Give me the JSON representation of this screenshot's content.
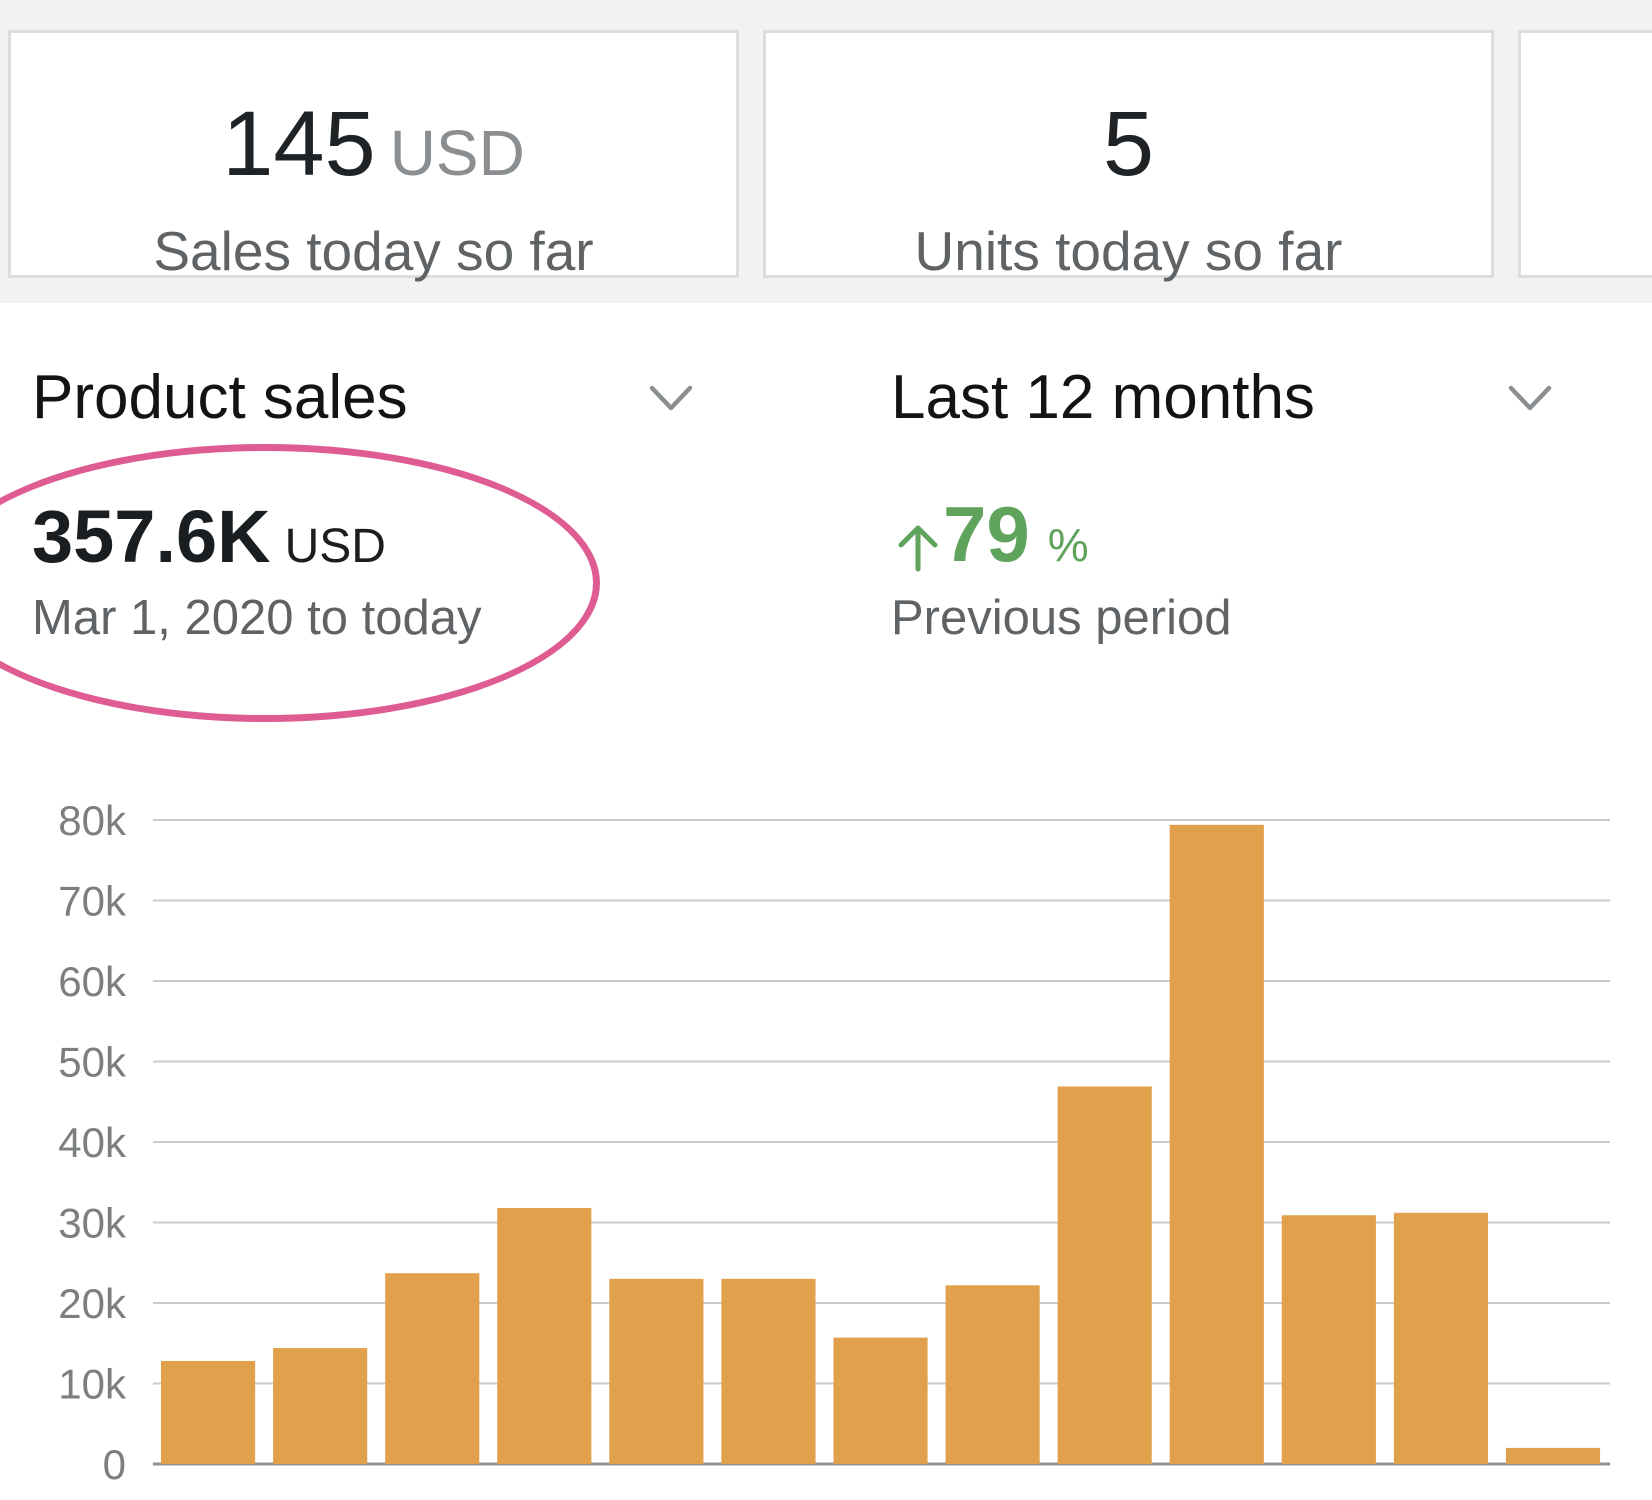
{
  "kpis": [
    {
      "value": "145",
      "unit": "USD",
      "label": "Sales today so far"
    },
    {
      "value": "5",
      "unit": "",
      "label": "Units today so far"
    }
  ],
  "metric_selector": {
    "label": "Product sales",
    "icon": "chevron-down-icon"
  },
  "period_selector": {
    "label": "Last 12 months",
    "icon": "chevron-down-icon"
  },
  "total": {
    "value": "357.6K",
    "unit": "USD",
    "range": "Mar 1, 2020 to today"
  },
  "comparison": {
    "value": "79",
    "unit": "%",
    "label": "Previous period",
    "direction": "up",
    "icon": "arrow-up-icon"
  },
  "colors": {
    "bar": "#e1a04b",
    "growth": "#5fa35c",
    "highlight": "#de5c92",
    "grid": "#c9cccd"
  },
  "chart_data": {
    "type": "bar",
    "ylim": [
      0,
      80000
    ],
    "yticks": [
      "0",
      "10k",
      "20k",
      "30k",
      "40k",
      "50k",
      "60k",
      "70k",
      "80k"
    ],
    "grid": true,
    "series": [
      {
        "values": [
          12800,
          14400,
          23700,
          31800,
          23000,
          23000,
          15700,
          22200,
          46900,
          79400,
          30900,
          31200,
          2000
        ]
      }
    ]
  }
}
